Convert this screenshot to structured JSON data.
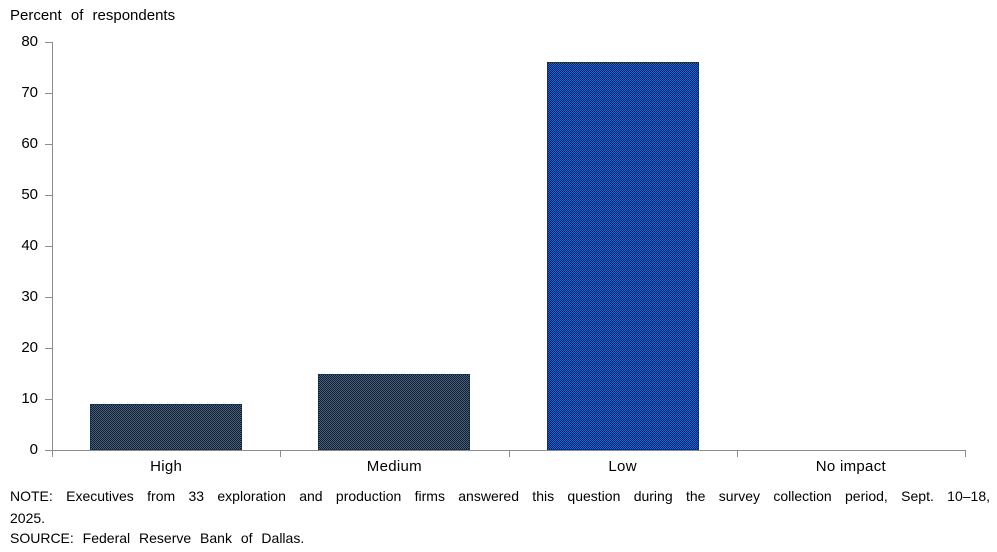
{
  "chart_data": {
    "type": "bar",
    "title": "Percent of respondents",
    "categories": [
      "High",
      "Medium",
      "Low",
      "No impact"
    ],
    "values": [
      9,
      15,
      76,
      0
    ],
    "xlabel": "",
    "ylabel": "Percent of respondents",
    "ylim": [
      0,
      80
    ],
    "ytick_step": 10,
    "grid": false,
    "legend": "none",
    "bar_fill_average": "#1b4377",
    "bar_dither_blue": "#2a63be",
    "bar_dither_dark": "#0f2137",
    "bar_border": "#16304f",
    "axis_color": "#8c8c8c",
    "text_color": "#000000"
  },
  "notes": {
    "line1": "NOTE: Executives from 33 exploration and production firms answered this question during the survey collection period, Sept. 10–18,",
    "line2": "2025.",
    "source": "SOURCE: Federal Reserve Bank of Dallas."
  }
}
